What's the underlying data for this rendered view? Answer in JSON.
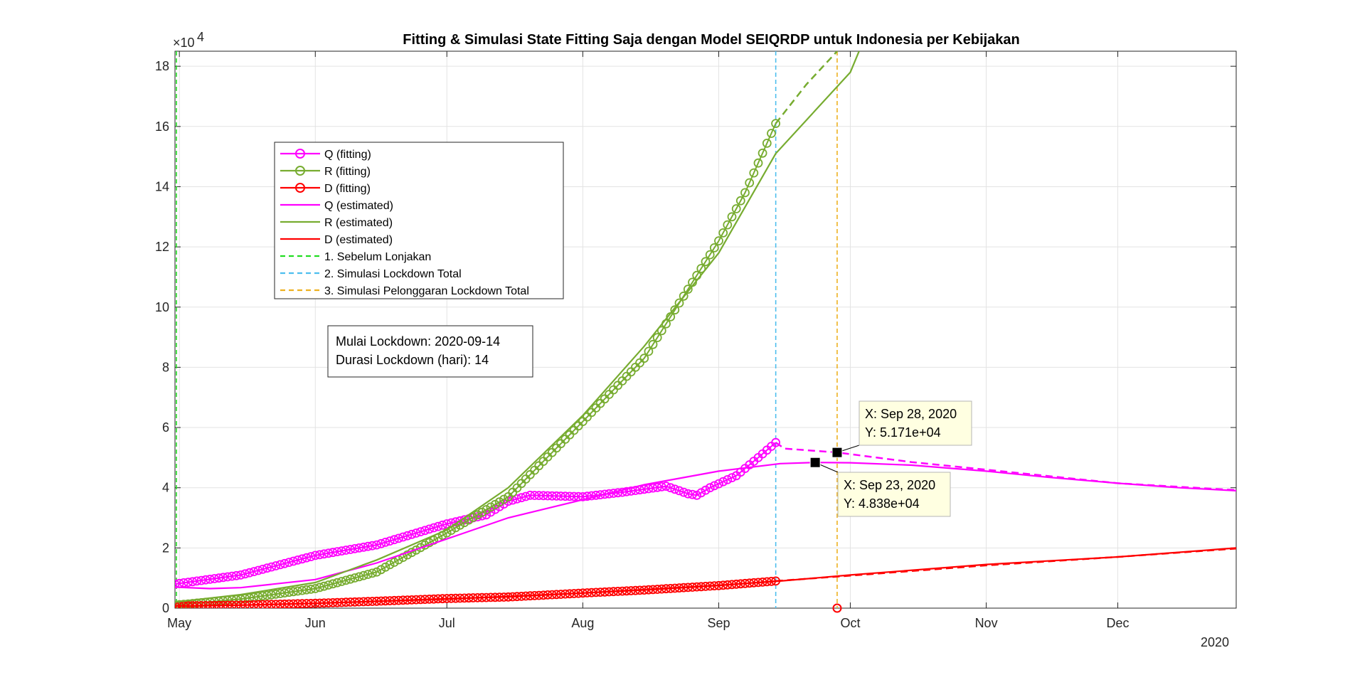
{
  "chart_data": {
    "type": "line",
    "title": "Fitting & Simulasi State Fitting Saja dengan Model SEIQRDP untuk Indonesia per Kebijakan",
    "xlabel": "",
    "ylabel": "",
    "x_axis": {
      "type": "date",
      "range": [
        "2020-04-30",
        "2020-12-28"
      ],
      "ticks": [
        {
          "date": "2020-05-01",
          "label": "May"
        },
        {
          "date": "2020-06-01",
          "label": "Jun"
        },
        {
          "date": "2020-07-01",
          "label": "Jul"
        },
        {
          "date": "2020-08-01",
          "label": "Aug"
        },
        {
          "date": "2020-09-01",
          "label": "Sep"
        },
        {
          "date": "2020-10-01",
          "label": "Oct"
        },
        {
          "date": "2020-11-01",
          "label": "Nov"
        },
        {
          "date": "2020-12-01",
          "label": "Dec"
        }
      ],
      "year_label": "2020"
    },
    "y_axis": {
      "range": [
        0,
        185000
      ],
      "exponent_label": "×10",
      "exponent_power": "4",
      "ticks": [
        {
          "value": 0,
          "label": "0"
        },
        {
          "value": 20000,
          "label": "2"
        },
        {
          "value": 40000,
          "label": "4"
        },
        {
          "value": 60000,
          "label": "6"
        },
        {
          "value": 80000,
          "label": "8"
        },
        {
          "value": 100000,
          "label": "10"
        },
        {
          "value": 120000,
          "label": "12"
        },
        {
          "value": 140000,
          "label": "14"
        },
        {
          "value": 160000,
          "label": "16"
        },
        {
          "value": 180000,
          "label": "18"
        }
      ]
    },
    "grid": true,
    "legend_position": "upper-left",
    "series": [
      {
        "name": "Q (fitting)",
        "color": "#FF00FF",
        "style": "circle-line",
        "points": [
          [
            "2020-04-30",
            8000
          ],
          [
            "2020-05-15",
            11000
          ],
          [
            "2020-06-01",
            17500
          ],
          [
            "2020-06-15",
            21000
          ],
          [
            "2020-07-01",
            28000
          ],
          [
            "2020-07-10",
            31000
          ],
          [
            "2020-07-15",
            35500
          ],
          [
            "2020-07-20",
            37500
          ],
          [
            "2020-08-01",
            37000
          ],
          [
            "2020-08-10",
            38500
          ],
          [
            "2020-08-20",
            40500
          ],
          [
            "2020-08-25",
            38000
          ],
          [
            "2020-08-27",
            37500
          ],
          [
            "2020-08-30",
            40000
          ],
          [
            "2020-09-05",
            44000
          ],
          [
            "2020-09-10",
            50000
          ],
          [
            "2020-09-14",
            55000
          ]
        ]
      },
      {
        "name": "R (fitting)",
        "color": "#77AC30",
        "style": "circle-line",
        "points": [
          [
            "2020-04-30",
            1000
          ],
          [
            "2020-05-15",
            3000
          ],
          [
            "2020-06-01",
            6500
          ],
          [
            "2020-06-15",
            12000
          ],
          [
            "2020-07-01",
            25000
          ],
          [
            "2020-07-15",
            37000
          ],
          [
            "2020-08-01",
            62000
          ],
          [
            "2020-08-15",
            83000
          ],
          [
            "2020-09-01",
            122000
          ],
          [
            "2020-09-07",
            138000
          ],
          [
            "2020-09-14",
            161000
          ]
        ]
      },
      {
        "name": "D (fitting)",
        "color": "#FF0000",
        "style": "circle-line",
        "points": [
          [
            "2020-04-30",
            700
          ],
          [
            "2020-05-15",
            1000
          ],
          [
            "2020-06-01",
            1600
          ],
          [
            "2020-06-15",
            2300
          ],
          [
            "2020-07-01",
            3200
          ],
          [
            "2020-07-15",
            3700
          ],
          [
            "2020-08-01",
            5000
          ],
          [
            "2020-08-15",
            6000
          ],
          [
            "2020-09-01",
            7500
          ],
          [
            "2020-09-14",
            9000
          ]
        ]
      },
      {
        "name": "Q (estimated)",
        "color": "#FF00FF",
        "style": "solid",
        "points": [
          [
            "2020-04-30",
            7000
          ],
          [
            "2020-05-08",
            6500
          ],
          [
            "2020-05-15",
            6800
          ],
          [
            "2020-06-01",
            9500
          ],
          [
            "2020-06-15",
            15000
          ],
          [
            "2020-07-01",
            23000
          ],
          [
            "2020-07-15",
            30000
          ],
          [
            "2020-08-01",
            36000
          ],
          [
            "2020-08-15",
            41000
          ],
          [
            "2020-09-01",
            45500
          ],
          [
            "2020-09-15",
            48000
          ],
          [
            "2020-09-23",
            48380
          ],
          [
            "2020-10-01",
            48300
          ],
          [
            "2020-10-15",
            47500
          ],
          [
            "2020-11-01",
            45500
          ],
          [
            "2020-11-15",
            43500
          ],
          [
            "2020-12-01",
            41500
          ],
          [
            "2020-12-15",
            40000
          ],
          [
            "2020-12-28",
            39000
          ]
        ]
      },
      {
        "name": "R (estimated)",
        "color": "#77AC30",
        "style": "solid",
        "points": [
          [
            "2020-04-30",
            2000
          ],
          [
            "2020-05-15",
            4500
          ],
          [
            "2020-06-01",
            8500
          ],
          [
            "2020-06-15",
            16000
          ],
          [
            "2020-07-01",
            26000
          ],
          [
            "2020-07-15",
            40000
          ],
          [
            "2020-08-01",
            64000
          ],
          [
            "2020-08-15",
            87000
          ],
          [
            "2020-09-01",
            118000
          ],
          [
            "2020-09-14",
            151000
          ],
          [
            "2020-10-01",
            178000
          ],
          [
            "2020-10-03",
            185000
          ]
        ]
      },
      {
        "name": "D (estimated)",
        "color": "#FF0000",
        "style": "solid",
        "points": [
          [
            "2020-04-30",
            700
          ],
          [
            "2020-05-15",
            1000
          ],
          [
            "2020-06-01",
            1600
          ],
          [
            "2020-07-01",
            3000
          ],
          [
            "2020-08-01",
            5000
          ],
          [
            "2020-09-01",
            7600
          ],
          [
            "2020-09-15",
            9000
          ],
          [
            "2020-10-01",
            11000
          ],
          [
            "2020-11-01",
            14500
          ],
          [
            "2020-12-01",
            17000
          ],
          [
            "2020-12-28",
            20000
          ]
        ]
      }
    ],
    "simulation_series": [
      {
        "color": "#FF00FF",
        "style": "dashed",
        "points": [
          [
            "2020-09-14",
            55000
          ],
          [
            "2020-09-16",
            53000
          ],
          [
            "2020-09-28",
            51710
          ],
          [
            "2020-10-15",
            48500
          ],
          [
            "2020-11-01",
            46000
          ],
          [
            "2020-12-01",
            41500
          ],
          [
            "2020-12-28",
            39200
          ]
        ]
      },
      {
        "color": "#77AC30",
        "style": "dashed",
        "points": [
          [
            "2020-09-14",
            161000
          ],
          [
            "2020-09-21",
            174000
          ],
          [
            "2020-09-28",
            185000
          ]
        ]
      },
      {
        "color": "#FF0000",
        "style": "dashed",
        "points": [
          [
            "2020-09-14",
            9000
          ],
          [
            "2020-10-01",
            10800
          ],
          [
            "2020-11-01",
            14200
          ],
          [
            "2020-12-01",
            17000
          ],
          [
            "2020-12-28",
            19800
          ]
        ]
      }
    ],
    "policy_lines": [
      {
        "name": "1. Sebelum Lonjakan",
        "date": "2020-04-30",
        "color": "#22DD22"
      },
      {
        "name": "2. Simulasi Lockdown Total",
        "date": "2020-09-14",
        "color": "#4DBEEE"
      },
      {
        "name": "3. Simulasi Pelonggaran Lockdown Total",
        "date": "2020-09-28",
        "color": "#EDB120"
      }
    ],
    "extra_marker": {
      "date": "2020-09-28",
      "value": 0,
      "color": "#FF0000"
    },
    "info_box": {
      "line1": "Mulai Lockdown: 2020-09-14",
      "line2": "Durasi Lockdown (hari): 14"
    },
    "datatips": [
      {
        "date": "2020-09-28",
        "value": 51710,
        "x_text": "X: Sep 28, 2020",
        "y_text": "Y: 5.171e+04"
      },
      {
        "date": "2020-09-23",
        "value": 48380,
        "x_text": "X: Sep 23, 2020",
        "y_text": "Y: 4.838e+04"
      }
    ]
  }
}
